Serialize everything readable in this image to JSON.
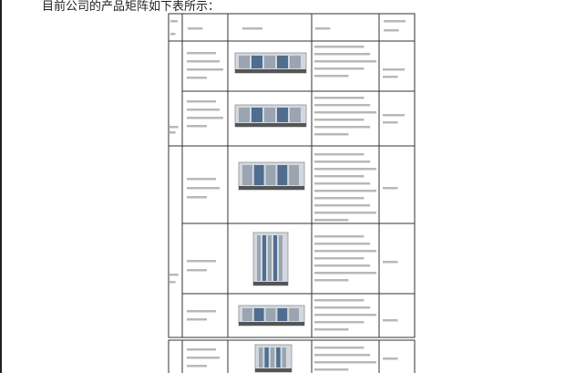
{
  "heading": "目前公司的产品矩阵如下表所示："
}
